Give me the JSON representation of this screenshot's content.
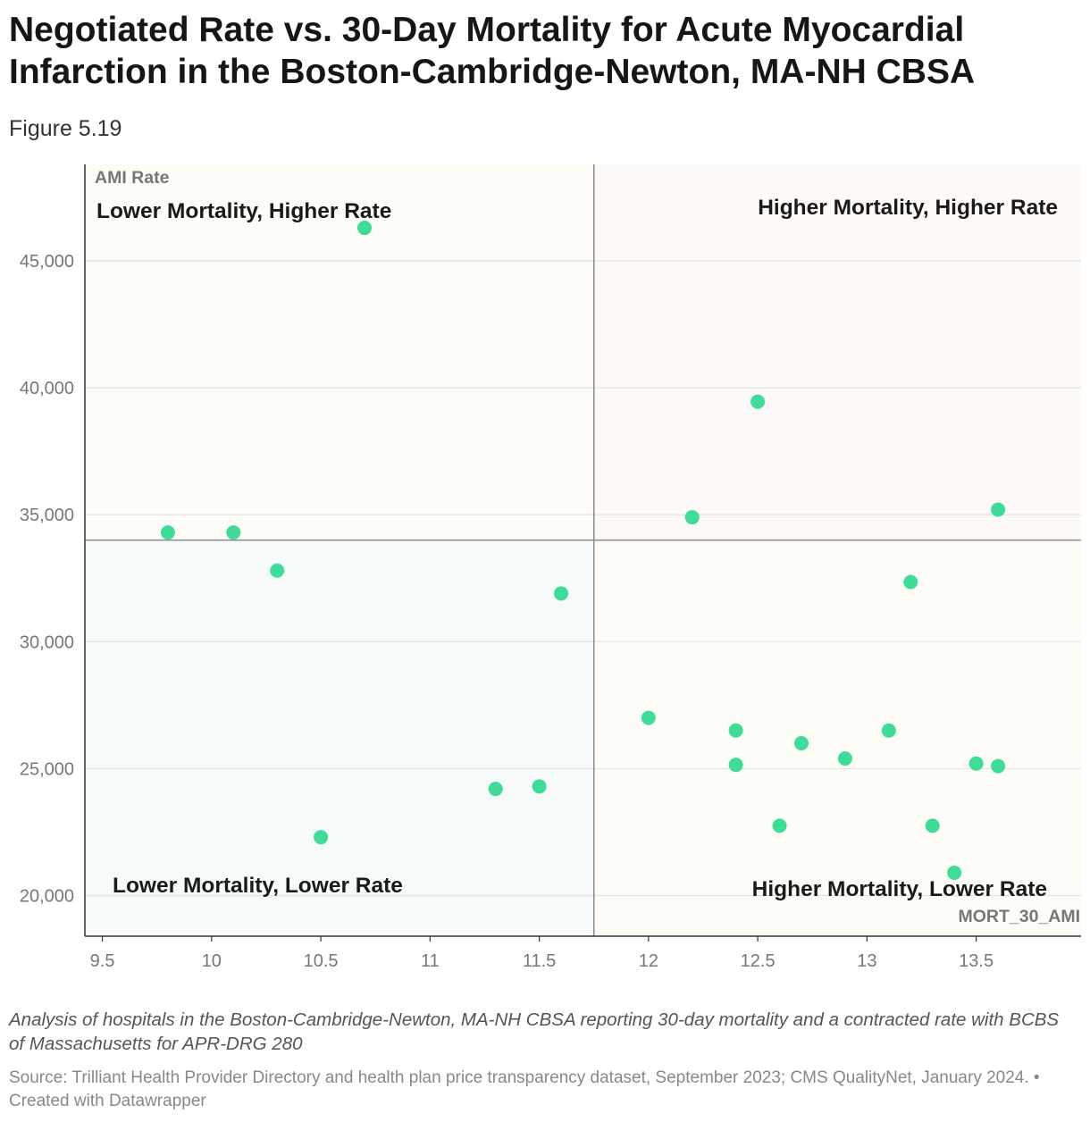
{
  "title": "Negotiated Rate vs. 30-Day Mortality for Acute Myocardial Infarction in the Boston-Cambridge-Newton, MA-NH CBSA",
  "subtitle": "Figure 5.19",
  "notes": "Analysis of hospitals in the Boston-Cambridge-Newton, MA-NH CBSA reporting 30-day mortality and a contracted rate with BCBS of Massachusetts for APR-DRG 280",
  "source": "Source: Trilliant Health Provider Directory and health plan price transparency dataset, September 2023; CMS QualityNet, January 2024. • Created with Datawrapper",
  "colors": {
    "point": "#3ddc97",
    "quadrant_top_left": "#fdfcf7",
    "quadrant_top_right": "#fdf9f6",
    "quadrant_bottom_left": "#f6fafa",
    "quadrant_bottom_right": "#fdfcf7"
  },
  "chart_data": {
    "type": "scatter",
    "xlabel": "MORT_30_AMI",
    "ylabel": "AMI Rate",
    "xlim": [
      9.42,
      13.98
    ],
    "ylim": [
      18400,
      48800
    ],
    "x_ticks": [
      9.5,
      10,
      10.5,
      11,
      11.5,
      12,
      12.5,
      13,
      13.5
    ],
    "x_tick_labels": [
      "9.5",
      "10",
      "10.5",
      "11",
      "11.5",
      "12",
      "12.5",
      "13",
      "13.5"
    ],
    "y_ticks": [
      20000,
      25000,
      30000,
      35000,
      40000,
      45000
    ],
    "y_tick_labels": [
      "20,000",
      "25,000",
      "30,000",
      "35,000",
      "40,000",
      "45,000"
    ],
    "x_divider": 11.75,
    "y_divider": 34000,
    "quadrants": {
      "top_left": "Lower Mortality, Higher Rate",
      "top_right": "Higher Mortality, Higher Rate",
      "bottom_left": "Lower Mortality, Lower Rate",
      "bottom_right": "Higher Mortality, Lower Rate"
    },
    "points": [
      {
        "x": 9.8,
        "y": 34300
      },
      {
        "x": 10.1,
        "y": 34300
      },
      {
        "x": 10.3,
        "y": 32800
      },
      {
        "x": 10.5,
        "y": 22300
      },
      {
        "x": 10.7,
        "y": 46300
      },
      {
        "x": 11.3,
        "y": 24200
      },
      {
        "x": 11.5,
        "y": 24300
      },
      {
        "x": 11.6,
        "y": 31900
      },
      {
        "x": 12.0,
        "y": 27000
      },
      {
        "x": 12.2,
        "y": 34900
      },
      {
        "x": 12.4,
        "y": 26500
      },
      {
        "x": 12.4,
        "y": 25150
      },
      {
        "x": 12.5,
        "y": 39450
      },
      {
        "x": 12.6,
        "y": 22750
      },
      {
        "x": 12.7,
        "y": 26000
      },
      {
        "x": 12.9,
        "y": 25400
      },
      {
        "x": 13.1,
        "y": 26500
      },
      {
        "x": 13.2,
        "y": 32350
      },
      {
        "x": 13.3,
        "y": 22750
      },
      {
        "x": 13.4,
        "y": 20900
      },
      {
        "x": 13.5,
        "y": 25200
      },
      {
        "x": 13.6,
        "y": 25100
      },
      {
        "x": 13.6,
        "y": 35200
      }
    ]
  }
}
